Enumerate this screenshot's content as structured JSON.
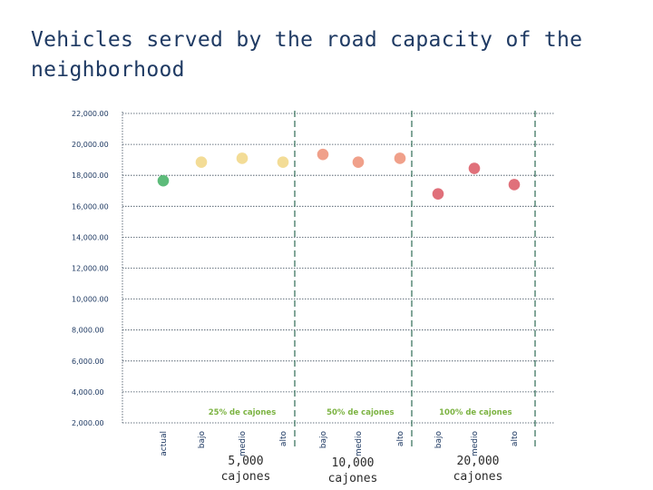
{
  "title": "Vehicles served by the road capacity of the neighborhood",
  "panel_labels": [
    {
      "count": "5,000",
      "unit": "cajones"
    },
    {
      "count": "10,000",
      "unit": "cajones"
    },
    {
      "count": "20,000",
      "unit": "cajones"
    }
  ],
  "chart_data": {
    "type": "scatter",
    "title": "Vehicles served by the road capacity of the neighborhood",
    "ylim": [
      2000,
      22000
    ],
    "y_tick_values": [
      22000,
      20000,
      18000,
      16000,
      14000,
      12000,
      10000,
      8000,
      6000,
      4000,
      2000
    ],
    "y_tick_labels": [
      "22,000.00",
      "20,000.00",
      "18,000.00",
      "16,000.00",
      "14,000.00",
      "12,000.00",
      "10,000.00",
      "8,000.00",
      "6,000.00",
      "4,000.00",
      "2,000.00"
    ],
    "grid": true,
    "categories": [
      "actual",
      "bajo",
      "medio",
      "alto",
      "bajo",
      "medio",
      "alto",
      "bajo",
      "medio",
      "alto"
    ],
    "groups": [
      {
        "label": "25% de cajones",
        "categories": [
          1,
          2,
          3
        ]
      },
      {
        "label": "50% de cajones",
        "categories": [
          4,
          5,
          6
        ]
      },
      {
        "label": "100% de cajones",
        "categories": [
          7,
          8,
          9
        ]
      }
    ],
    "points": [
      {
        "x": "actual",
        "y": 17650,
        "color": "#5dbb7a"
      },
      {
        "x": "bajo",
        "y": 18850,
        "color": "#f3dc96"
      },
      {
        "x": "medio",
        "y": 19100,
        "color": "#f3dc96"
      },
      {
        "x": "alto",
        "y": 18850,
        "color": "#f3dc96"
      },
      {
        "x": "bajo",
        "y": 19350,
        "color": "#f0a08a"
      },
      {
        "x": "medio",
        "y": 18850,
        "color": "#f0a08a"
      },
      {
        "x": "alto",
        "y": 19100,
        "color": "#f0a08a"
      },
      {
        "x": "bajo",
        "y": 16800,
        "color": "#e0707a"
      },
      {
        "x": "medio",
        "y": 18450,
        "color": "#e0707a"
      },
      {
        "x": "alto",
        "y": 17400,
        "color": "#e0707a"
      }
    ]
  }
}
